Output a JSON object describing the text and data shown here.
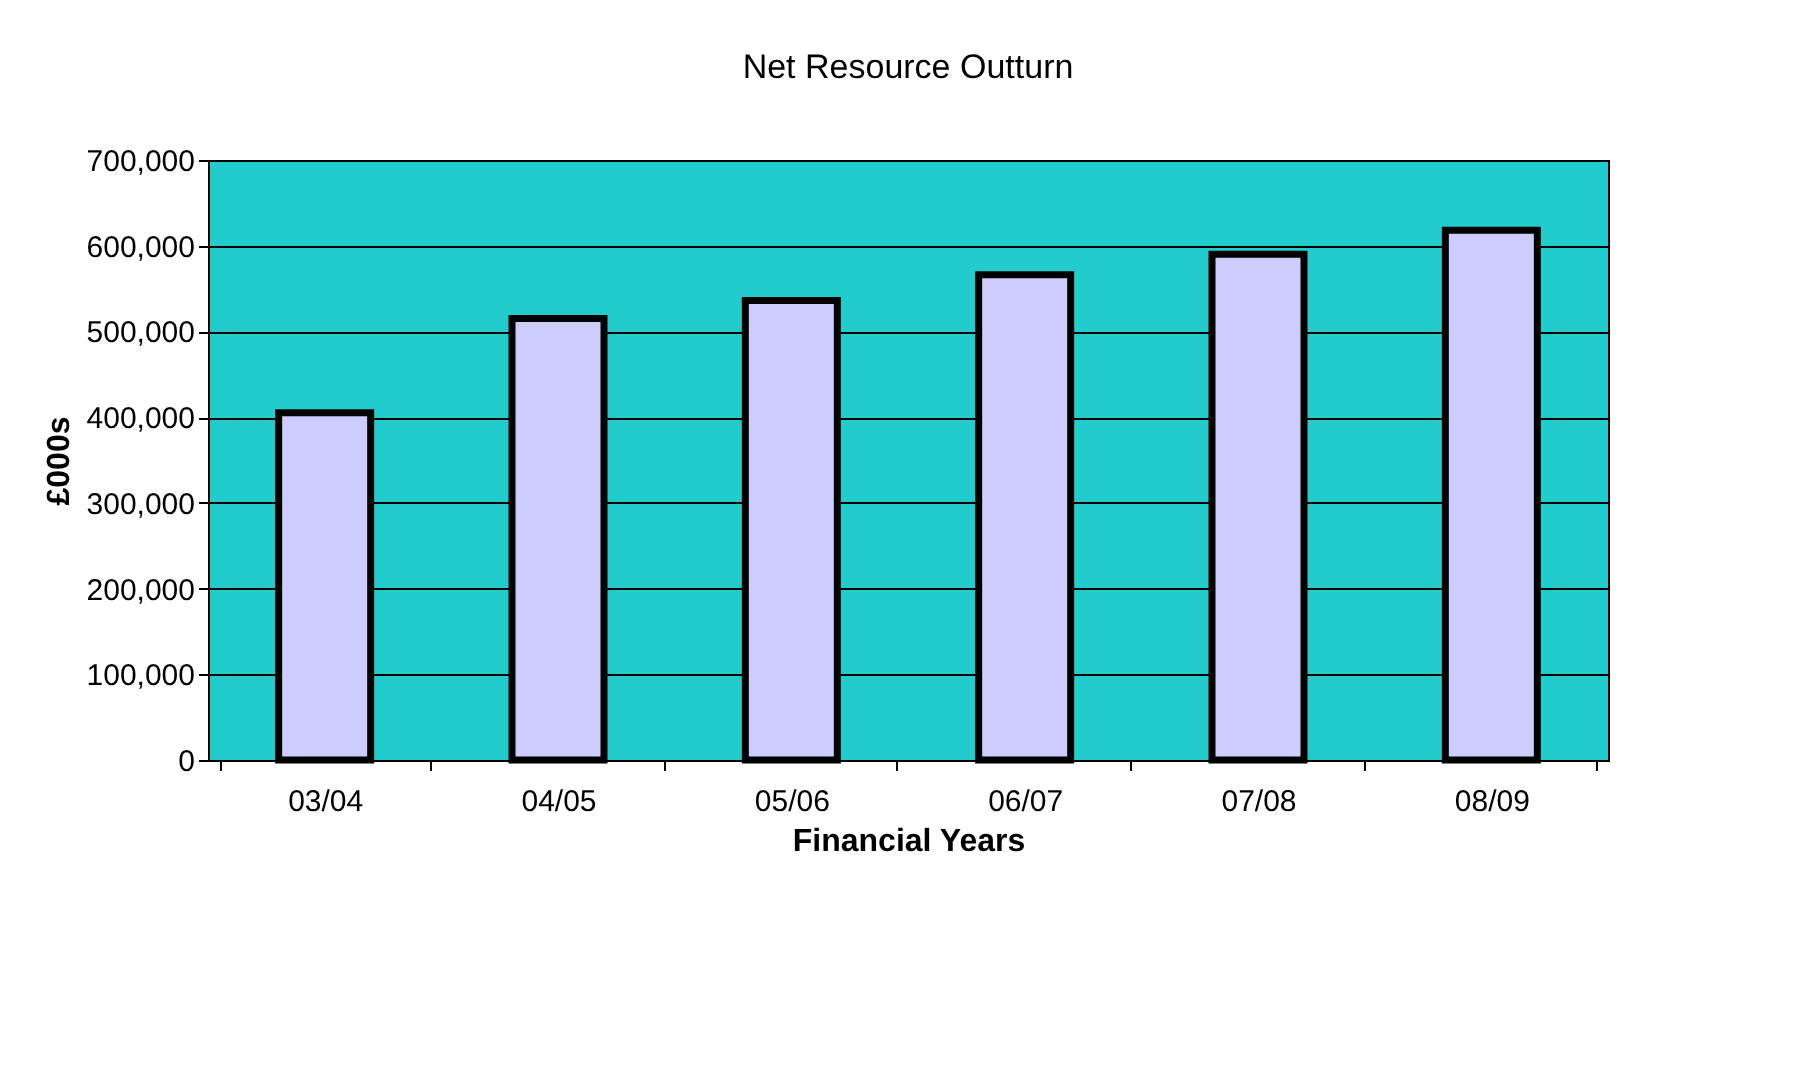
{
  "chart_data": {
    "type": "bar",
    "title": "Net Resource Outturn",
    "xlabel": "Financial Years",
    "ylabel": "£000s",
    "categories": [
      "03/04",
      "04/05",
      "05/06",
      "06/07",
      "07/08",
      "08/09"
    ],
    "values": [
      405000,
      515000,
      536000,
      566000,
      590000,
      618000
    ],
    "color": "#ccccff",
    "ylim": [
      0,
      700000
    ],
    "yticks": [
      0,
      {
        "value": 100000,
        "label": "100,000"
      },
      {
        "value": 200000,
        "label": "200,000"
      },
      {
        "value": 300000,
        "label": "300,000"
      },
      {
        "value": 400000,
        "label": "400,000"
      },
      {
        "value": 500000,
        "label": "500,000"
      },
      {
        "value": 600000,
        "label": "600,000"
      },
      {
        "value": 700000,
        "label": "700,000"
      }
    ],
    "grid": "y"
  }
}
